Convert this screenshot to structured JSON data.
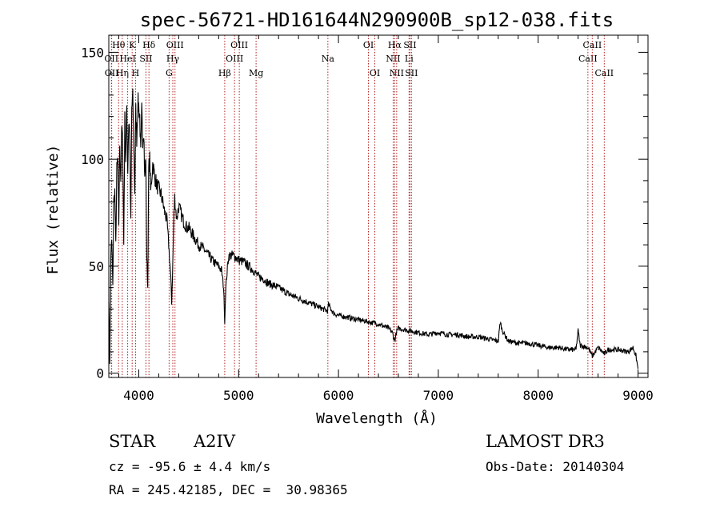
{
  "chart_data": {
    "type": "line",
    "title": "spec-56721-HD161644N290900B_sp12-038.fits",
    "xlabel": "Wavelength (Å)",
    "ylabel": "Flux (relative)",
    "xlim": [
      3700,
      9100
    ],
    "ylim": [
      -2,
      158
    ],
    "xticks": [
      4000,
      5000,
      6000,
      7000,
      8000,
      9000
    ],
    "yticks": [
      0,
      50,
      100,
      150
    ],
    "grid": false,
    "line_color": "#000000",
    "marker_color": "#b22222",
    "series": [
      {
        "x": [
          3700,
          3710,
          3720,
          3730,
          3740,
          3750,
          3760,
          3770,
          3780,
          3790,
          3800,
          3810,
          3820,
          3830,
          3840,
          3850,
          3860,
          3870,
          3880,
          3890,
          3900,
          3910,
          3920,
          3930,
          3940,
          3950,
          3960,
          3970,
          3980,
          3990,
          4000,
          4010,
          4020,
          4030,
          4040,
          4050,
          4060,
          4070,
          4080,
          4090,
          4100,
          4110,
          4120,
          4140,
          4160,
          4180,
          4200,
          4220,
          4240,
          4260,
          4280,
          4300,
          4320,
          4330,
          4340,
          4350,
          4360,
          4380,
          4400,
          4420,
          4440,
          4460,
          4480,
          4500,
          4550,
          4600,
          4650,
          4700,
          4750,
          4800,
          4830,
          4850,
          4861,
          4870,
          4880,
          4900,
          4950,
          5000,
          5050,
          5100,
          5150,
          5200,
          5250,
          5300,
          5400,
          5500,
          5600,
          5700,
          5800,
          5890,
          5900,
          5950,
          6000,
          6100,
          6200,
          6300,
          6400,
          6500,
          6540,
          6563,
          6580,
          6600,
          6700,
          6800,
          6900,
          7000,
          7100,
          7200,
          7300,
          7400,
          7500,
          7600,
          7620,
          7640,
          7700,
          7800,
          7900,
          8000,
          8100,
          8200,
          8300,
          8380,
          8400,
          8420,
          8500,
          8542,
          8600,
          8662,
          8700,
          8800,
          8900,
          8950,
          8980,
          9000
        ],
        "y": [
          35,
          5,
          55,
          62,
          40,
          80,
          85,
          60,
          95,
          100,
          70,
          108,
          90,
          115,
          105,
          60,
          118,
          100,
          125,
          95,
          118,
          112,
          70,
          124,
          128,
          108,
          85,
          122,
          110,
          126,
          125,
          120,
          102,
          122,
          110,
          115,
          90,
          102,
          55,
          40,
          95,
          100,
          85,
          98,
          92,
          88,
          86,
          84,
          80,
          75,
          72,
          60,
          45,
          33,
          50,
          70,
          82,
          72,
          78,
          75,
          72,
          70,
          68,
          68,
          64,
          60,
          58,
          55,
          52,
          50,
          48,
          40,
          24,
          38,
          45,
          55,
          55,
          53,
          52,
          50,
          48,
          45,
          44,
          42,
          40,
          37,
          35,
          33,
          31,
          29,
          32,
          28,
          27,
          26,
          25,
          24,
          23,
          21,
          19,
          15,
          19,
          21,
          20,
          19,
          18,
          19,
          18,
          18,
          17,
          17,
          16,
          15,
          24,
          20,
          15,
          14,
          14,
          13,
          12,
          12,
          11,
          11,
          20,
          13,
          12,
          8,
          12,
          9,
          11,
          11,
          10,
          12,
          8,
          2
        ]
      }
    ],
    "line_markers": [
      {
        "x": 3726,
        "label": "OII",
        "row": 2
      },
      {
        "x": 3729,
        "label": "OII",
        "row": 3
      },
      {
        "x": 3798,
        "label": "Hθ",
        "row": 1
      },
      {
        "x": 3835,
        "label": "Hη",
        "row": 3
      },
      {
        "x": 3889,
        "label": "HeI",
        "row": 2
      },
      {
        "x": 3934,
        "label": "K",
        "row": 1
      },
      {
        "x": 3968,
        "label": "H",
        "row": 3
      },
      {
        "x": 4072,
        "label": "SII",
        "row": 2
      },
      {
        "x": 4102,
        "label": "Hδ",
        "row": 1
      },
      {
        "x": 4304,
        "label": "G",
        "row": 3
      },
      {
        "x": 4341,
        "label": "Hγ",
        "row": 2
      },
      {
        "x": 4363,
        "label": "OIII",
        "row": 1
      },
      {
        "x": 4861,
        "label": "Hβ",
        "row": 3
      },
      {
        "x": 4959,
        "label": "OIII",
        "row": 2
      },
      {
        "x": 5007,
        "label": "OIII",
        "row": 1
      },
      {
        "x": 5175,
        "label": "Mg",
        "row": 3
      },
      {
        "x": 5894,
        "label": "Na",
        "row": 2
      },
      {
        "x": 6300,
        "label": "OI",
        "row": 1
      },
      {
        "x": 6364,
        "label": "OI",
        "row": 3
      },
      {
        "x": 6548,
        "label": "NII",
        "row": 2
      },
      {
        "x": 6563,
        "label": "Hα",
        "row": 1
      },
      {
        "x": 6583,
        "label": "NII",
        "row": 3
      },
      {
        "x": 6707,
        "label": "Li",
        "row": 2
      },
      {
        "x": 6716,
        "label": "SII",
        "row": 1
      },
      {
        "x": 6731,
        "label": "SII",
        "row": 3
      },
      {
        "x": 8498,
        "label": "CaII",
        "row": 2
      },
      {
        "x": 8542,
        "label": "CaII",
        "row": 1
      },
      {
        "x": 8662,
        "label": "CaII",
        "row": 3
      }
    ]
  },
  "info": {
    "object_class": "STAR",
    "subclass": "A2IV",
    "survey": "LAMOST DR3",
    "redshift": "cz = -95.6 ± 4.4 km/s",
    "obs_date": "Obs-Date: 20140304",
    "coordinates": "RA = 245.42185, DEC =  30.98365"
  }
}
